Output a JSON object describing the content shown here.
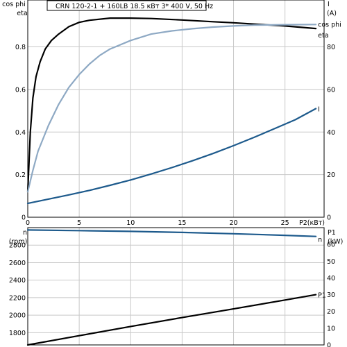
{
  "title": "CRN 120-2-1 + 160LB    18.5 кВт   3* 400 V, 50 Hz",
  "colors": {
    "eta": "#000000",
    "cosphi": "#8ea9c4",
    "current": "#1d5a8c",
    "speed": "#1d5a8c",
    "power": "#000000",
    "grid": "#c8c8c8"
  },
  "chart_data": [
    {
      "type": "line",
      "xlabel": "P2(кВт)",
      "xlim": [
        0,
        28.8
      ],
      "x_ticks": [
        "0",
        "5",
        "10",
        "15",
        "20",
        "25"
      ],
      "x_tick_values": [
        0,
        5,
        10,
        15,
        20,
        25
      ],
      "left_axis": {
        "labels": [
          "cos phi",
          "eta"
        ],
        "ylim": [
          0,
          1.02
        ],
        "ticks": [
          "0",
          "0.2",
          "0.4",
          "0.6",
          "0.8"
        ],
        "tick_values": [
          0,
          0.2,
          0.4,
          0.6,
          0.8
        ]
      },
      "right_axis": {
        "labels": [
          "I",
          "(A)"
        ],
        "ylim": [
          0,
          102
        ],
        "ticks": [
          "0",
          "20",
          "40",
          "60",
          "80"
        ],
        "tick_values": [
          0,
          20,
          40,
          60,
          80
        ]
      },
      "grid": true,
      "series": [
        {
          "name": "eta",
          "axis": "left",
          "color_key": "eta",
          "x": [
            0,
            0.25,
            0.5,
            0.8,
            1.2,
            1.7,
            2.3,
            3,
            4,
            5,
            6,
            8,
            10,
            12,
            15,
            18,
            20,
            22,
            25,
            28
          ],
          "y": [
            0.12,
            0.4,
            0.56,
            0.66,
            0.73,
            0.79,
            0.83,
            0.86,
            0.895,
            0.915,
            0.925,
            0.935,
            0.935,
            0.933,
            0.926,
            0.918,
            0.913,
            0.907,
            0.898,
            0.886
          ]
        },
        {
          "name": "cos phi",
          "axis": "left",
          "color_key": "cosphi",
          "x": [
            0,
            0.5,
            1,
            2,
            3,
            4,
            5,
            6,
            7,
            8,
            10,
            12,
            14,
            16,
            18,
            20,
            22,
            25,
            28
          ],
          "y": [
            0.12,
            0.22,
            0.31,
            0.43,
            0.53,
            0.61,
            0.67,
            0.72,
            0.76,
            0.79,
            0.83,
            0.86,
            0.875,
            0.885,
            0.893,
            0.898,
            0.902,
            0.904,
            0.905
          ]
        },
        {
          "name": "I",
          "axis": "right",
          "color_key": "current",
          "x": [
            0,
            2,
            4,
            6,
            8,
            10,
            12,
            14,
            16,
            18,
            20,
            22,
            24,
            26,
            28
          ],
          "y": [
            6.5,
            8.5,
            10.5,
            12.6,
            15,
            17.5,
            20.3,
            23.3,
            26.5,
            29.9,
            33.6,
            37.5,
            41.6,
            45.8,
            51
          ]
        }
      ]
    },
    {
      "type": "line",
      "xlim": [
        0,
        28.8
      ],
      "left_axis": {
        "labels": [
          "n",
          "(rpm)"
        ],
        "ylim": [
          1660,
          3000
        ],
        "ticks": [
          "1800",
          "2000",
          "2200",
          "2400",
          "2600",
          "2800"
        ],
        "tick_values": [
          1800,
          2000,
          2200,
          2400,
          2600,
          2800
        ]
      },
      "right_axis": {
        "labels": [
          "P1",
          "(kW)"
        ],
        "ylim": [
          0,
          70
        ],
        "ticks": [
          "0",
          "10",
          "20",
          "30",
          "40",
          "50",
          "60"
        ],
        "tick_values": [
          0,
          10,
          20,
          30,
          40,
          50,
          60
        ]
      },
      "grid": true,
      "series": [
        {
          "name": "n",
          "axis": "left",
          "color_key": "speed",
          "x": [
            0,
            5,
            10,
            15,
            20,
            25,
            28
          ],
          "y": [
            2973,
            2966,
            2957,
            2945,
            2930,
            2912,
            2899
          ]
        },
        {
          "name": "P1",
          "axis": "right",
          "color_key": "power",
          "x": [
            0,
            5,
            10,
            15,
            20,
            25,
            28
          ],
          "y": [
            0,
            5.5,
            11,
            16.3,
            21.5,
            26.8,
            30
          ]
        }
      ]
    }
  ]
}
